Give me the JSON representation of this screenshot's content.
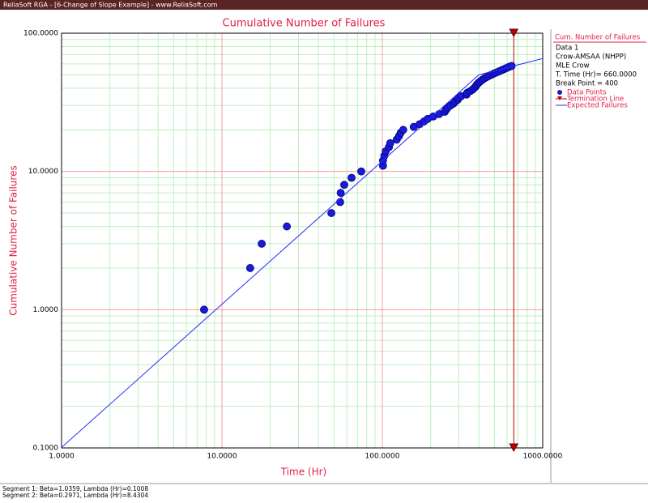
{
  "window_title": "ReliaSoft RGA - [6-Change of Slope Example] - www.ReliaSoft.com",
  "status": [
    "Segment 1: Beta=1.0359, Lambda (Hr)=0.1008",
    "Segment 2: Beta=0.2971, Lambda (Hr)=8.4304"
  ],
  "chart_data": {
    "type": "scatter",
    "title": "Cumulative Number of Failures",
    "x_label": "Time (Hr)",
    "y_label": "Cumulative Number of Failures",
    "log_x": true,
    "log_y": true,
    "grid": true,
    "xlim": [
      1,
      1000
    ],
    "ylim": [
      0.1,
      100
    ],
    "xticks": [
      {
        "value": 1,
        "label": "1.0000"
      },
      {
        "value": 10,
        "label": "10.0000"
      },
      {
        "value": 100,
        "label": "100.0000"
      },
      {
        "value": 1000,
        "label": "1000.0000"
      }
    ],
    "yticks": [
      {
        "value": 0.1,
        "label": "0.1000"
      },
      {
        "value": 1,
        "label": "1.0000"
      },
      {
        "value": 10,
        "label": "10.0000"
      },
      {
        "value": 100,
        "label": "100.0000"
      }
    ],
    "xminor": [
      2,
      3,
      4,
      5,
      6,
      7,
      8,
      9,
      20,
      30,
      40,
      50,
      60,
      70,
      80,
      90,
      200,
      300,
      400,
      500,
      600,
      700,
      800,
      900
    ],
    "yminor": [
      0.2,
      0.3,
      0.4,
      0.5,
      0.6,
      0.7,
      0.8,
      0.9,
      2,
      3,
      4,
      5,
      6,
      7,
      8,
      9,
      20,
      30,
      40,
      50,
      60,
      70,
      80,
      90
    ],
    "legend_title": "Cum. Number of Failures",
    "legend_info": [
      "Data 1",
      "Crow-AMSAA (NHPP)",
      "MLE Crow",
      "T. Time (Hr)= 660.0000",
      "Break Point = 400"
    ],
    "series": [
      {
        "name": "Data Points",
        "type": "scatter",
        "color": "#1a1ad8",
        "x": [
          7.74,
          15,
          17.7,
          25.4,
          48.1,
          54.6,
          55,
          57.9,
          64.3,
          73.9,
          101,
          101,
          103,
          105,
          110,
          112,
          123,
          127,
          130,
          135,
          157,
          171,
          182,
          192,
          208,
          226,
          245,
          250,
          256,
          266,
          278,
          285,
          295,
          298,
          310,
          335,
          338,
          352,
          364,
          373,
          381,
          386,
          392,
          400,
          410,
          420,
          432,
          445,
          460,
          478,
          495,
          515,
          535,
          555,
          575,
          595,
          615,
          640
        ],
        "values": [
          1,
          2,
          3,
          4,
          5,
          6,
          7,
          8,
          9,
          10,
          11,
          12,
          13,
          14,
          15,
          16,
          17,
          18,
          19,
          20,
          21,
          22,
          23,
          24,
          25,
          26,
          27,
          28,
          29,
          30,
          31,
          32,
          33,
          34,
          35,
          36,
          37,
          38,
          39,
          40,
          41,
          42,
          43,
          44,
          45,
          46,
          47,
          48,
          49,
          50,
          51,
          52,
          53,
          54,
          55,
          56,
          57,
          58
        ]
      },
      {
        "name": "Expected Failures",
        "type": "line",
        "color": "#2a2aff",
        "x": [
          1,
          400,
          1000
        ],
        "values": [
          0.1008,
          50,
          65.6
        ]
      }
    ],
    "termination": {
      "name": "Termination Line",
      "x": 660,
      "color": "#c00000"
    }
  }
}
